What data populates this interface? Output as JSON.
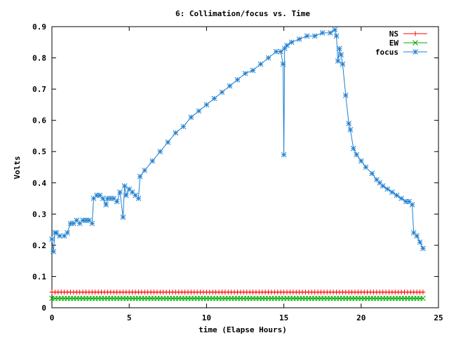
{
  "chart_data": {
    "type": "line",
    "title": "6: Collimation/focus vs. Time",
    "xlabel": "time (Elapse Hours)",
    "ylabel": "Volts",
    "xlim": [
      0,
      25
    ],
    "ylim": [
      0,
      0.9
    ],
    "x_ticks": [
      "0",
      "5",
      "10",
      "15",
      "20",
      "25"
    ],
    "y_ticks": [
      "0",
      "0.1",
      "0.2",
      "0.3",
      "0.4",
      "0.5",
      "0.6",
      "0.7",
      "0.8",
      "0.9"
    ],
    "grid": false,
    "legend_position": "top-right",
    "series": [
      {
        "name": "NS",
        "color": "#ff0000",
        "marker": "plus",
        "x": [
          0,
          24
        ],
        "y": [
          0.05,
          0.05
        ],
        "step": 0.2
      },
      {
        "name": "EW",
        "color": "#00aa00",
        "marker": "cross",
        "x": [
          0,
          24
        ],
        "y": [
          0.03,
          0.03
        ],
        "step": 0.2
      },
      {
        "name": "focus",
        "color": "#1f7fd0",
        "marker": "star",
        "x": [
          0,
          0.1,
          0.2,
          0.3,
          0.5,
          0.8,
          1.0,
          1.2,
          1.4,
          1.6,
          1.8,
          2.0,
          2.2,
          2.4,
          2.6,
          2.7,
          2.9,
          3.1,
          3.3,
          3.5,
          3.6,
          3.8,
          4.0,
          4.2,
          4.4,
          4.6,
          4.7,
          4.8,
          5.0,
          5.2,
          5.4,
          5.6,
          5.7,
          6.0,
          6.5,
          7.0,
          7.5,
          8.0,
          8.5,
          9.0,
          9.5,
          10.0,
          10.5,
          11.0,
          11.5,
          12.0,
          12.5,
          13.0,
          13.5,
          14.0,
          14.5,
          14.8,
          14.95,
          15.0,
          15.05,
          15.2,
          15.5,
          16.0,
          16.5,
          17.0,
          17.5,
          18.0,
          18.3,
          18.4,
          18.5,
          18.6,
          18.7,
          18.8,
          19.0,
          19.2,
          19.3,
          19.5,
          19.7,
          20.0,
          20.3,
          20.7,
          21.0,
          21.2,
          21.4,
          21.7,
          22.0,
          22.3,
          22.6,
          22.9,
          23.1,
          23.3,
          23.4,
          23.6,
          23.8,
          24.0
        ],
        "y": [
          0.22,
          0.18,
          0.24,
          0.24,
          0.23,
          0.23,
          0.24,
          0.27,
          0.27,
          0.28,
          0.27,
          0.28,
          0.28,
          0.28,
          0.27,
          0.35,
          0.36,
          0.36,
          0.35,
          0.33,
          0.35,
          0.35,
          0.35,
          0.34,
          0.37,
          0.29,
          0.39,
          0.36,
          0.38,
          0.37,
          0.36,
          0.35,
          0.42,
          0.44,
          0.47,
          0.5,
          0.53,
          0.56,
          0.58,
          0.61,
          0.63,
          0.65,
          0.67,
          0.69,
          0.71,
          0.73,
          0.75,
          0.76,
          0.78,
          0.8,
          0.82,
          0.82,
          0.78,
          0.49,
          0.83,
          0.84,
          0.85,
          0.86,
          0.87,
          0.87,
          0.88,
          0.88,
          0.89,
          0.87,
          0.79,
          0.83,
          0.81,
          0.78,
          0.68,
          0.59,
          0.57,
          0.51,
          0.49,
          0.47,
          0.45,
          0.43,
          0.41,
          0.4,
          0.39,
          0.38,
          0.37,
          0.36,
          0.35,
          0.34,
          0.34,
          0.33,
          0.24,
          0.23,
          0.21,
          0.19
        ]
      }
    ]
  }
}
